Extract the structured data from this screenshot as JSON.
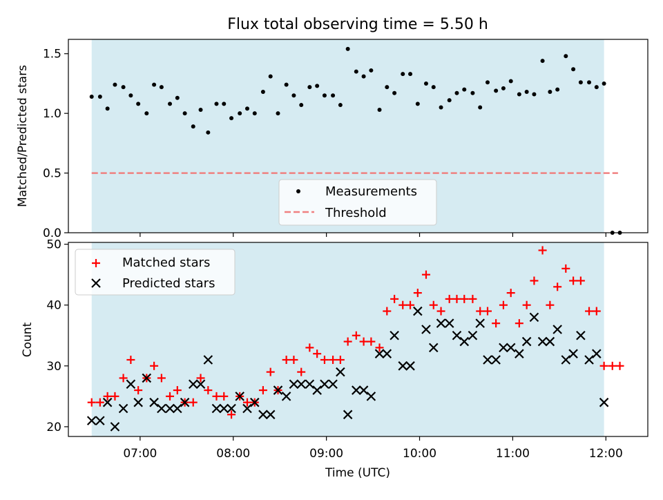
{
  "title": "Flux total observing time = 5.50 h",
  "colors": {
    "observing_span": "#add8e6",
    "measurement": "#000000",
    "threshold": "#f08080",
    "matched": "#ff0000",
    "predicted": "#000000"
  },
  "chart_data": [
    {
      "type": "scatter",
      "panel": "top",
      "ylabel": "Matched/Predicted stars",
      "ylim": [
        0,
        1.62
      ],
      "yticks": [
        0.0,
        0.5,
        1.0,
        1.5
      ],
      "ytick_labels": [
        "0.0",
        "0.5",
        "1.0",
        "1.5"
      ],
      "x_unit": "hours UTC",
      "xlim": [
        6.23,
        12.45
      ],
      "observing_span": [
        6.48,
        11.98
      ],
      "threshold": {
        "value": 0.5,
        "x_range": [
          6.48,
          12.13
        ]
      },
      "legend": {
        "placement": "lower center",
        "entries": [
          "Measurements",
          "Threshold"
        ]
      },
      "measurements": [
        [
          6.48,
          1.14
        ],
        [
          6.57,
          1.14
        ],
        [
          6.65,
          1.04
        ],
        [
          6.73,
          1.24
        ],
        [
          6.82,
          1.22
        ],
        [
          6.9,
          1.15
        ],
        [
          6.98,
          1.08
        ],
        [
          7.07,
          1.0
        ],
        [
          7.15,
          1.24
        ],
        [
          7.23,
          1.22
        ],
        [
          7.32,
          1.08
        ],
        [
          7.4,
          1.13
        ],
        [
          7.48,
          1.0
        ],
        [
          7.57,
          0.89
        ],
        [
          7.65,
          1.03
        ],
        [
          7.73,
          0.84
        ],
        [
          7.82,
          1.08
        ],
        [
          7.9,
          1.08
        ],
        [
          7.98,
          0.96
        ],
        [
          8.07,
          1.0
        ],
        [
          8.15,
          1.04
        ],
        [
          8.23,
          1.0
        ],
        [
          8.32,
          1.18
        ],
        [
          8.4,
          1.31
        ],
        [
          8.48,
          1.0
        ],
        [
          8.57,
          1.24
        ],
        [
          8.65,
          1.15
        ],
        [
          8.73,
          1.07
        ],
        [
          8.82,
          1.22
        ],
        [
          8.9,
          1.23
        ],
        [
          8.98,
          1.15
        ],
        [
          9.07,
          1.15
        ],
        [
          9.15,
          1.07
        ],
        [
          9.23,
          1.54
        ],
        [
          9.32,
          1.35
        ],
        [
          9.4,
          1.31
        ],
        [
          9.48,
          1.36
        ],
        [
          9.57,
          1.03
        ],
        [
          9.65,
          1.22
        ],
        [
          9.73,
          1.17
        ],
        [
          9.82,
          1.33
        ],
        [
          9.9,
          1.33
        ],
        [
          9.98,
          1.08
        ],
        [
          10.07,
          1.25
        ],
        [
          10.15,
          1.22
        ],
        [
          10.23,
          1.05
        ],
        [
          10.32,
          1.11
        ],
        [
          10.4,
          1.17
        ],
        [
          10.48,
          1.2
        ],
        [
          10.57,
          1.17
        ],
        [
          10.65,
          1.05
        ],
        [
          10.73,
          1.26
        ],
        [
          10.82,
          1.19
        ],
        [
          10.9,
          1.21
        ],
        [
          10.98,
          1.27
        ],
        [
          11.07,
          1.16
        ],
        [
          11.15,
          1.18
        ],
        [
          11.23,
          1.16
        ],
        [
          11.32,
          1.44
        ],
        [
          11.4,
          1.18
        ],
        [
          11.48,
          1.2
        ],
        [
          11.57,
          1.48
        ],
        [
          11.65,
          1.37
        ],
        [
          11.73,
          1.26
        ],
        [
          11.82,
          1.26
        ],
        [
          11.9,
          1.22
        ],
        [
          11.98,
          1.25
        ],
        [
          12.07,
          0.0
        ],
        [
          12.15,
          0.0
        ]
      ]
    },
    {
      "type": "scatter",
      "panel": "bottom",
      "xlabel": "Time (UTC)",
      "ylabel": "Count",
      "ylim": [
        18.4,
        50.3
      ],
      "yticks": [
        20,
        30,
        40,
        50
      ],
      "ytick_labels": [
        "20",
        "30",
        "40",
        "50"
      ],
      "xlim": [
        6.23,
        12.45
      ],
      "xticks": [
        7,
        8,
        9,
        10,
        11,
        12
      ],
      "xtick_labels": [
        "07:00",
        "08:00",
        "09:00",
        "10:00",
        "11:00",
        "12:00"
      ],
      "observing_span": [
        6.48,
        11.98
      ],
      "legend": {
        "placement": "upper left",
        "entries": [
          "Matched stars",
          "Predicted stars"
        ]
      },
      "series": [
        {
          "name": "Matched stars",
          "marker": "plus",
          "points": [
            [
              6.48,
              24
            ],
            [
              6.57,
              24
            ],
            [
              6.65,
              25
            ],
            [
              6.73,
              25
            ],
            [
              6.82,
              28
            ],
            [
              6.9,
              31
            ],
            [
              6.98,
              26
            ],
            [
              7.07,
              28
            ],
            [
              7.15,
              30
            ],
            [
              7.23,
              28
            ],
            [
              7.32,
              25
            ],
            [
              7.4,
              26
            ],
            [
              7.48,
              24
            ],
            [
              7.57,
              24
            ],
            [
              7.65,
              28
            ],
            [
              7.73,
              26
            ],
            [
              7.82,
              25
            ],
            [
              7.9,
              25
            ],
            [
              7.98,
              22
            ],
            [
              8.07,
              25
            ],
            [
              8.15,
              24
            ],
            [
              8.23,
              24
            ],
            [
              8.32,
              26
            ],
            [
              8.4,
              29
            ],
            [
              8.48,
              26
            ],
            [
              8.57,
              31
            ],
            [
              8.65,
              31
            ],
            [
              8.73,
              29
            ],
            [
              8.82,
              33
            ],
            [
              8.9,
              32
            ],
            [
              8.98,
              31
            ],
            [
              9.07,
              31
            ],
            [
              9.15,
              31
            ],
            [
              9.23,
              34
            ],
            [
              9.32,
              35
            ],
            [
              9.4,
              34
            ],
            [
              9.48,
              34
            ],
            [
              9.57,
              33
            ],
            [
              9.65,
              39
            ],
            [
              9.73,
              41
            ],
            [
              9.82,
              40
            ],
            [
              9.9,
              40
            ],
            [
              9.98,
              42
            ],
            [
              10.07,
              45
            ],
            [
              10.15,
              40
            ],
            [
              10.23,
              39
            ],
            [
              10.32,
              41
            ],
            [
              10.4,
              41
            ],
            [
              10.48,
              41
            ],
            [
              10.57,
              41
            ],
            [
              10.65,
              39
            ],
            [
              10.73,
              39
            ],
            [
              10.82,
              37
            ],
            [
              10.9,
              40
            ],
            [
              10.98,
              42
            ],
            [
              11.07,
              37
            ],
            [
              11.15,
              40
            ],
            [
              11.23,
              44
            ],
            [
              11.32,
              49
            ],
            [
              11.4,
              40
            ],
            [
              11.48,
              43
            ],
            [
              11.57,
              46
            ],
            [
              11.65,
              44
            ],
            [
              11.73,
              44
            ],
            [
              11.82,
              39
            ],
            [
              11.9,
              39
            ],
            [
              11.98,
              30
            ],
            [
              12.07,
              30
            ],
            [
              12.15,
              30
            ]
          ]
        },
        {
          "name": "Predicted stars",
          "marker": "x",
          "points": [
            [
              6.48,
              21
            ],
            [
              6.57,
              21
            ],
            [
              6.65,
              24
            ],
            [
              6.73,
              20
            ],
            [
              6.82,
              23
            ],
            [
              6.9,
              27
            ],
            [
              6.98,
              24
            ],
            [
              7.07,
              28
            ],
            [
              7.15,
              24
            ],
            [
              7.23,
              23
            ],
            [
              7.32,
              23
            ],
            [
              7.4,
              23
            ],
            [
              7.48,
              24
            ],
            [
              7.57,
              27
            ],
            [
              7.65,
              27
            ],
            [
              7.73,
              31
            ],
            [
              7.82,
              23
            ],
            [
              7.9,
              23
            ],
            [
              7.98,
              23
            ],
            [
              8.07,
              25
            ],
            [
              8.15,
              23
            ],
            [
              8.23,
              24
            ],
            [
              8.32,
              22
            ],
            [
              8.4,
              22
            ],
            [
              8.48,
              26
            ],
            [
              8.57,
              25
            ],
            [
              8.65,
              27
            ],
            [
              8.73,
              27
            ],
            [
              8.82,
              27
            ],
            [
              8.9,
              26
            ],
            [
              8.98,
              27
            ],
            [
              9.07,
              27
            ],
            [
              9.15,
              29
            ],
            [
              9.23,
              22
            ],
            [
              9.32,
              26
            ],
            [
              9.4,
              26
            ],
            [
              9.48,
              25
            ],
            [
              9.57,
              32
            ],
            [
              9.65,
              32
            ],
            [
              9.73,
              35
            ],
            [
              9.82,
              30
            ],
            [
              9.9,
              30
            ],
            [
              9.98,
              39
            ],
            [
              10.07,
              36
            ],
            [
              10.15,
              33
            ],
            [
              10.23,
              37
            ],
            [
              10.32,
              37
            ],
            [
              10.4,
              35
            ],
            [
              10.48,
              34
            ],
            [
              10.57,
              35
            ],
            [
              10.65,
              37
            ],
            [
              10.73,
              31
            ],
            [
              10.82,
              31
            ],
            [
              10.9,
              33
            ],
            [
              10.98,
              33
            ],
            [
              11.07,
              32
            ],
            [
              11.15,
              34
            ],
            [
              11.23,
              38
            ],
            [
              11.32,
              34
            ],
            [
              11.4,
              34
            ],
            [
              11.48,
              36
            ],
            [
              11.57,
              31
            ],
            [
              11.65,
              32
            ],
            [
              11.73,
              35
            ],
            [
              11.82,
              31
            ],
            [
              11.9,
              32
            ],
            [
              11.98,
              24
            ]
          ]
        }
      ]
    }
  ]
}
